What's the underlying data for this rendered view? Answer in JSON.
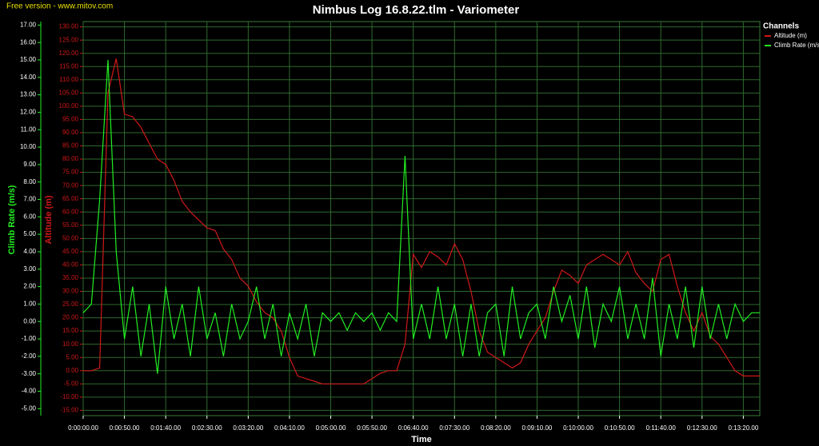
{
  "chart_data": {
    "type": "line",
    "watermark": "Free version - www.mitov.com",
    "title": "Nimbus Log 16.8.22.tlm - Variometer",
    "x_label": "Time",
    "y_label": "Climb Rate (m/s)",
    "y2_label": "Altitude (m)",
    "legend_title": "Channels",
    "legend": "right",
    "grid": true,
    "x": [
      0,
      10,
      20,
      30,
      40,
      50,
      60,
      70,
      80,
      90,
      100,
      110,
      120,
      130,
      140,
      150,
      160,
      170,
      180,
      190,
      200,
      210,
      220,
      230,
      240,
      250,
      260,
      270,
      280,
      290,
      300,
      310,
      320,
      330,
      340,
      350,
      360,
      370,
      380,
      390,
      400,
      410,
      420,
      430,
      440,
      450,
      460,
      470,
      480,
      490,
      500,
      510,
      520,
      530,
      540,
      550,
      560,
      570,
      580,
      590,
      600,
      610,
      620,
      630,
      640,
      650,
      660,
      670,
      680,
      690,
      700,
      710,
      720,
      730,
      740,
      750,
      760,
      770,
      780,
      790,
      800,
      810,
      820
    ],
    "xlim": [
      0,
      820
    ],
    "xticks": [
      {
        "value": 0,
        "label": "0:00:00.00"
      },
      {
        "value": 50,
        "label": "0:00:50.00"
      },
      {
        "value": 100,
        "label": "0:01:40.00"
      },
      {
        "value": 150,
        "label": "0:02:30.00"
      },
      {
        "value": 200,
        "label": "0:03:20.00"
      },
      {
        "value": 250,
        "label": "0:04:10.00"
      },
      {
        "value": 300,
        "label": "0:05:00.00"
      },
      {
        "value": 350,
        "label": "0:05:50.00"
      },
      {
        "value": 400,
        "label": "0:06:40.00"
      },
      {
        "value": 450,
        "label": "0:07:30.00"
      },
      {
        "value": 500,
        "label": "0:08:20.00"
      },
      {
        "value": 550,
        "label": "0:09:10.00"
      },
      {
        "value": 600,
        "label": "0:10:00.00"
      },
      {
        "value": 650,
        "label": "0:10:50.00"
      },
      {
        "value": 700,
        "label": "0:11:40.00"
      },
      {
        "value": 750,
        "label": "0:12:30.00"
      },
      {
        "value": 800,
        "label": "0:13:20.00"
      }
    ],
    "ylim": [
      -5.4,
      17.2
    ],
    "yticks": [
      {
        "value": -5,
        "label": "-5.00"
      },
      {
        "value": -4,
        "label": "-4.00"
      },
      {
        "value": -3,
        "label": "-3.00"
      },
      {
        "value": -2,
        "label": "-2.00"
      },
      {
        "value": -1,
        "label": "-1.00"
      },
      {
        "value": 0,
        "label": "0.00"
      },
      {
        "value": 1,
        "label": "1.00"
      },
      {
        "value": 2,
        "label": "2.00"
      },
      {
        "value": 3,
        "label": "3.00"
      },
      {
        "value": 4,
        "label": "4.00"
      },
      {
        "value": 5,
        "label": "5.00"
      },
      {
        "value": 6,
        "label": "6.00"
      },
      {
        "value": 7,
        "label": "7.00"
      },
      {
        "value": 8,
        "label": "8.00"
      },
      {
        "value": 9,
        "label": "9.00"
      },
      {
        "value": 10,
        "label": "10.00"
      },
      {
        "value": 11,
        "label": "11.00"
      },
      {
        "value": 12,
        "label": "12.00"
      },
      {
        "value": 13,
        "label": "13.00"
      },
      {
        "value": 14,
        "label": "14.00"
      },
      {
        "value": 15,
        "label": "15.00"
      },
      {
        "value": 16,
        "label": "16.00"
      },
      {
        "value": 17,
        "label": "17.00"
      }
    ],
    "y2lim": [
      -17,
      132
    ],
    "y2ticks": [
      {
        "value": -15,
        "label": "-15.00"
      },
      {
        "value": -10,
        "label": "-10.00"
      },
      {
        "value": -5,
        "label": "-5.00"
      },
      {
        "value": 0,
        "label": "0.00"
      },
      {
        "value": 5,
        "label": "5.00"
      },
      {
        "value": 10,
        "label": "10.00"
      },
      {
        "value": 15,
        "label": "15.00"
      },
      {
        "value": 20,
        "label": "20.00"
      },
      {
        "value": 25,
        "label": "25.00"
      },
      {
        "value": 30,
        "label": "30.00"
      },
      {
        "value": 35,
        "label": "35.00"
      },
      {
        "value": 40,
        "label": "40.00"
      },
      {
        "value": 45,
        "label": "45.00"
      },
      {
        "value": 50,
        "label": "50.00"
      },
      {
        "value": 55,
        "label": "55.00"
      },
      {
        "value": 60,
        "label": "60.00"
      },
      {
        "value": 65,
        "label": "65.00"
      },
      {
        "value": 70,
        "label": "70.00"
      },
      {
        "value": 75,
        "label": "75.00"
      },
      {
        "value": 80,
        "label": "80.00"
      },
      {
        "value": 85,
        "label": "85.00"
      },
      {
        "value": 90,
        "label": "90.00"
      },
      {
        "value": 95,
        "label": "95.00"
      },
      {
        "value": 100,
        "label": "100.00"
      },
      {
        "value": 105,
        "label": "105.00"
      },
      {
        "value": 110,
        "label": "110.00"
      },
      {
        "value": 115,
        "label": "115.00"
      },
      {
        "value": 120,
        "label": "120.00"
      },
      {
        "value": 125,
        "label": "125.00"
      },
      {
        "value": 130,
        "label": "130.00"
      }
    ],
    "series": [
      {
        "name": "Altitude (m)",
        "color": "#d01818",
        "axis": "y2",
        "values": [
          0,
          0,
          1,
          105,
          118,
          97,
          96,
          92,
          86,
          80,
          78,
          72,
          64,
          60,
          57,
          54,
          53,
          46,
          42,
          35,
          32,
          26,
          22,
          20,
          15,
          5,
          -2,
          -3,
          -4,
          -5,
          -5,
          -5,
          -5,
          -5,
          -5,
          -3,
          -1,
          0,
          0,
          10,
          44,
          39,
          45,
          43,
          40,
          48,
          42,
          30,
          15,
          7,
          5,
          3,
          1,
          3,
          10,
          15,
          20,
          30,
          38,
          36,
          33,
          40,
          42,
          44,
          42,
          40,
          45,
          37,
          33,
          30,
          42,
          44,
          32,
          22,
          15,
          22,
          13,
          10,
          5,
          0,
          -2,
          -2,
          -2
        ]
      },
      {
        "name": "Climb Rate (m/s",
        "color": "#22ee22",
        "values": [
          0.5,
          1,
          7,
          15,
          4,
          -1,
          2,
          -2,
          1,
          -3,
          2,
          -1,
          1,
          -2,
          2,
          -1,
          0.5,
          -2,
          1,
          -1,
          0,
          2,
          -1,
          1,
          -2,
          0.5,
          -1,
          1,
          -2,
          0.5,
          0,
          0.5,
          -0.5,
          0.5,
          0,
          0.5,
          -0.5,
          0.5,
          0,
          9.5,
          -1,
          1,
          -1,
          2,
          -1,
          1,
          -2,
          1,
          -2,
          0.5,
          1,
          -2,
          2,
          -1,
          0.5,
          1,
          -1,
          2,
          0,
          1.5,
          -1,
          2,
          -1.5,
          1,
          0,
          2,
          -1,
          1,
          -1,
          2.5,
          -2,
          1,
          -1,
          2,
          -1.5,
          2,
          -1,
          1,
          -1,
          1,
          0,
          0.5,
          0.5
        ]
      }
    ]
  }
}
